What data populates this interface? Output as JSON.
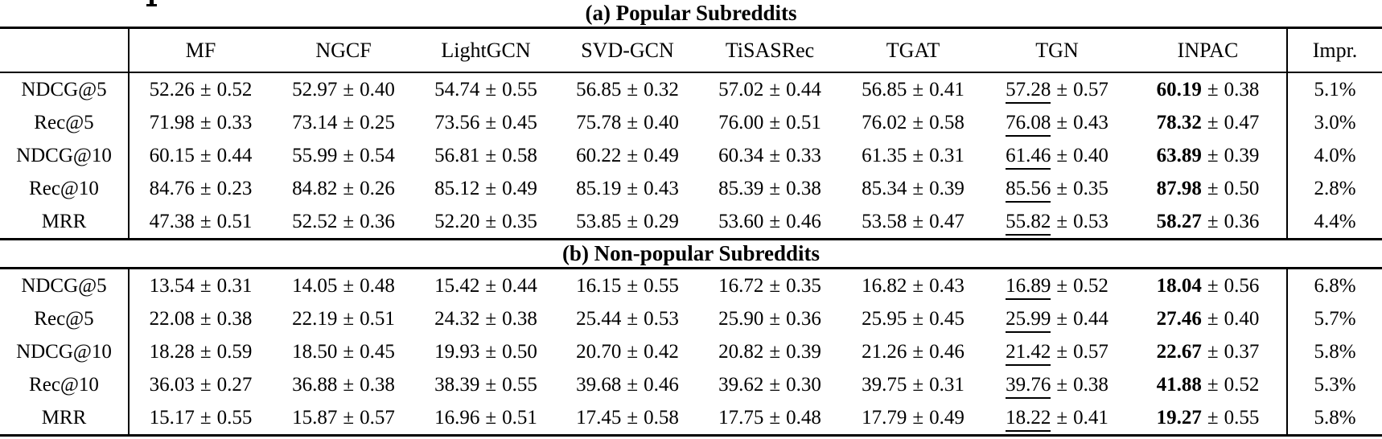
{
  "pm": "±",
  "columns": [
    "",
    "MF",
    "NGCF",
    "LightGCN",
    "SVD-GCN",
    "TiSASRec",
    "TGAT",
    "TGN",
    "INPAC",
    "Impr."
  ],
  "sections": [
    {
      "caption": "(a) Popular Subreddits",
      "rows": [
        {
          "label": "NDCG@5",
          "cells": [
            [
              "52.26",
              "0.52"
            ],
            [
              "52.97",
              "0.40"
            ],
            [
              "54.74",
              "0.55"
            ],
            [
              "56.85",
              "0.32"
            ],
            [
              "57.02",
              "0.44"
            ],
            [
              "56.85",
              "0.41"
            ],
            [
              "57.28",
              "0.57"
            ],
            [
              "60.19",
              "0.38"
            ]
          ],
          "impr": "5.1%"
        },
        {
          "label": "Rec@5",
          "cells": [
            [
              "71.98",
              "0.33"
            ],
            [
              "73.14",
              "0.25"
            ],
            [
              "73.56",
              "0.45"
            ],
            [
              "75.78",
              "0.40"
            ],
            [
              "76.00",
              "0.51"
            ],
            [
              "76.02",
              "0.58"
            ],
            [
              "76.08",
              "0.43"
            ],
            [
              "78.32",
              "0.47"
            ]
          ],
          "impr": "3.0%"
        },
        {
          "label": "NDCG@10",
          "cells": [
            [
              "60.15",
              "0.44"
            ],
            [
              "55.99",
              "0.54"
            ],
            [
              "56.81",
              "0.58"
            ],
            [
              "60.22",
              "0.49"
            ],
            [
              "60.34",
              "0.33"
            ],
            [
              "61.35",
              "0.31"
            ],
            [
              "61.46",
              "0.40"
            ],
            [
              "63.89",
              "0.39"
            ]
          ],
          "impr": "4.0%"
        },
        {
          "label": "Rec@10",
          "cells": [
            [
              "84.76",
              "0.23"
            ],
            [
              "84.82",
              "0.26"
            ],
            [
              "85.12",
              "0.49"
            ],
            [
              "85.19",
              "0.43"
            ],
            [
              "85.39",
              "0.38"
            ],
            [
              "85.34",
              "0.39"
            ],
            [
              "85.56",
              "0.35"
            ],
            [
              "87.98",
              "0.50"
            ]
          ],
          "impr": "2.8%"
        },
        {
          "label": "MRR",
          "cells": [
            [
              "47.38",
              "0.51"
            ],
            [
              "52.52",
              "0.36"
            ],
            [
              "52.20",
              "0.35"
            ],
            [
              "53.85",
              "0.29"
            ],
            [
              "53.60",
              "0.46"
            ],
            [
              "53.58",
              "0.47"
            ],
            [
              "55.82",
              "0.53"
            ],
            [
              "58.27",
              "0.36"
            ]
          ],
          "impr": "4.4%"
        }
      ]
    },
    {
      "caption": "(b) Non-popular Subreddits",
      "rows": [
        {
          "label": "NDCG@5",
          "cells": [
            [
              "13.54",
              "0.31"
            ],
            [
              "14.05",
              "0.48"
            ],
            [
              "15.42",
              "0.44"
            ],
            [
              "16.15",
              "0.55"
            ],
            [
              "16.72",
              "0.35"
            ],
            [
              "16.82",
              "0.43"
            ],
            [
              "16.89",
              "0.52"
            ],
            [
              "18.04",
              "0.56"
            ]
          ],
          "impr": "6.8%"
        },
        {
          "label": "Rec@5",
          "cells": [
            [
              "22.08",
              "0.38"
            ],
            [
              "22.19",
              "0.51"
            ],
            [
              "24.32",
              "0.38"
            ],
            [
              "25.44",
              "0.53"
            ],
            [
              "25.90",
              "0.36"
            ],
            [
              "25.95",
              "0.45"
            ],
            [
              "25.99",
              "0.44"
            ],
            [
              "27.46",
              "0.40"
            ]
          ],
          "impr": "5.7%"
        },
        {
          "label": "NDCG@10",
          "cells": [
            [
              "18.28",
              "0.59"
            ],
            [
              "18.50",
              "0.45"
            ],
            [
              "19.93",
              "0.50"
            ],
            [
              "20.70",
              "0.42"
            ],
            [
              "20.82",
              "0.39"
            ],
            [
              "21.26",
              "0.46"
            ],
            [
              "21.42",
              "0.57"
            ],
            [
              "22.67",
              "0.37"
            ]
          ],
          "impr": "5.8%"
        },
        {
          "label": "Rec@10",
          "cells": [
            [
              "36.03",
              "0.27"
            ],
            [
              "36.88",
              "0.38"
            ],
            [
              "38.39",
              "0.55"
            ],
            [
              "39.68",
              "0.46"
            ],
            [
              "39.62",
              "0.30"
            ],
            [
              "39.75",
              "0.31"
            ],
            [
              "39.76",
              "0.38"
            ],
            [
              "41.88",
              "0.52"
            ]
          ],
          "impr": "5.3%"
        },
        {
          "label": "MRR",
          "cells": [
            [
              "15.17",
              "0.55"
            ],
            [
              "15.87",
              "0.57"
            ],
            [
              "16.96",
              "0.51"
            ],
            [
              "17.45",
              "0.58"
            ],
            [
              "17.75",
              "0.48"
            ],
            [
              "17.79",
              "0.49"
            ],
            [
              "18.22",
              "0.41"
            ],
            [
              "19.27",
              "0.55"
            ]
          ],
          "impr": "5.8%"
        }
      ]
    }
  ],
  "chart_data": {
    "type": "table",
    "title_a": "(a) Popular Subreddits",
    "title_b": "(b) Non-popular Subreddits",
    "note": "best values (INPAC) bold, runner-up (TGN) underlined"
  }
}
